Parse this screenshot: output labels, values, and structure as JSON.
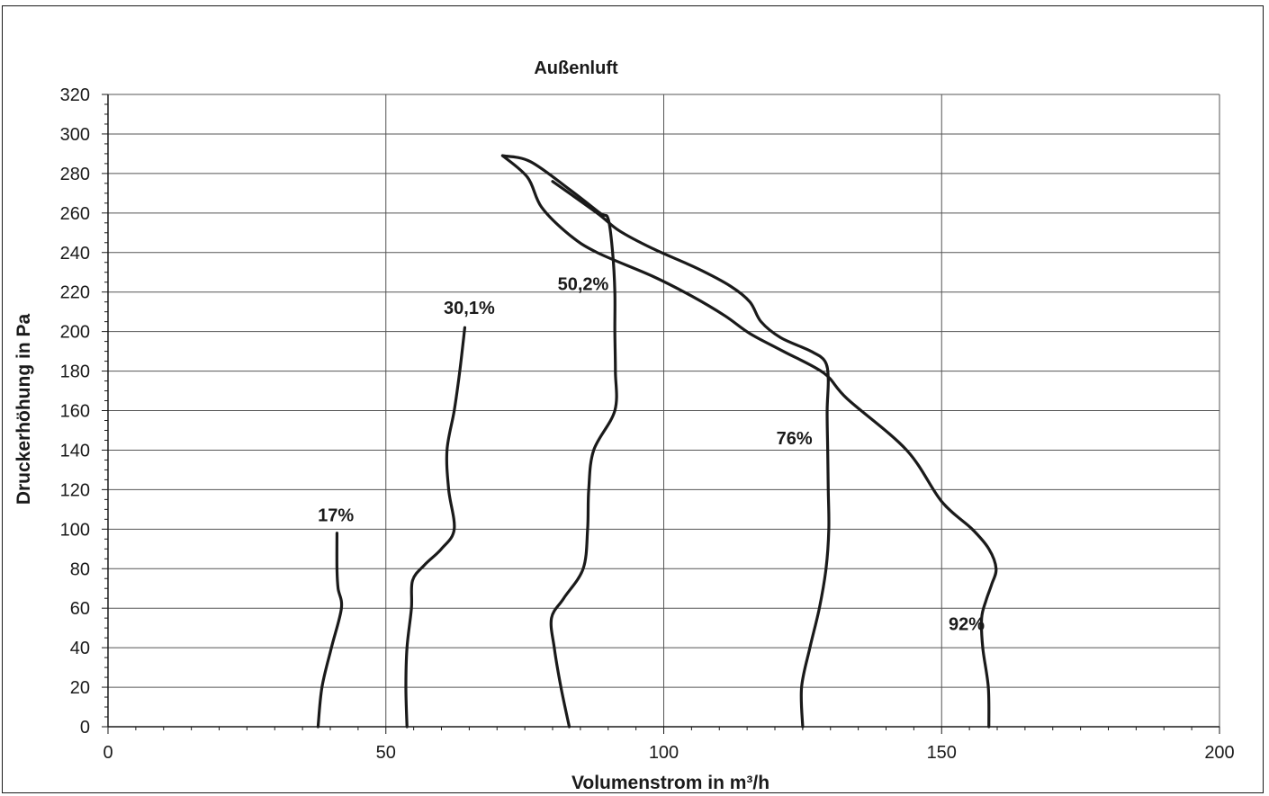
{
  "chart_data": {
    "type": "line",
    "title": "Außenluft",
    "xlabel": "Volumenstrom in m³/h",
    "ylabel": "Druckerhöhung in Pa",
    "xlim": [
      0,
      200
    ],
    "ylim": [
      0,
      320
    ],
    "xticks": [
      0,
      50,
      100,
      150,
      200
    ],
    "yticks": [
      0,
      20,
      40,
      60,
      80,
      100,
      120,
      140,
      160,
      180,
      200,
      220,
      240,
      260,
      280,
      300,
      320
    ],
    "grid": true,
    "line_color": "#1a1a1a",
    "series": [
      {
        "name": "17%",
        "label_at": [
          41,
          104
        ],
        "points": [
          [
            37.8,
            0
          ],
          [
            38.5,
            20
          ],
          [
            40.2,
            40
          ],
          [
            42,
            60
          ],
          [
            41.4,
            70
          ],
          [
            41.2,
            80
          ],
          [
            41.2,
            98
          ]
        ]
      },
      {
        "name": "30,1%",
        "label_at": [
          65,
          209
        ],
        "points": [
          [
            53.8,
            0
          ],
          [
            53.6,
            20
          ],
          [
            53.8,
            40
          ],
          [
            54.6,
            60
          ],
          [
            54.8,
            74
          ],
          [
            57,
            82
          ],
          [
            60,
            90
          ],
          [
            62.3,
            100
          ],
          [
            61.3,
            120
          ],
          [
            61,
            140
          ],
          [
            62.3,
            160
          ],
          [
            63.3,
            180
          ],
          [
            64.2,
            202
          ]
        ]
      },
      {
        "name": "50,2%",
        "label_at": [
          85.5,
          221
        ],
        "points": [
          [
            83,
            0
          ],
          [
            81.5,
            20
          ],
          [
            80.3,
            40
          ],
          [
            79.8,
            55
          ],
          [
            82,
            65
          ],
          [
            85.5,
            80
          ],
          [
            86.3,
            100
          ],
          [
            86.5,
            120
          ],
          [
            87.4,
            140
          ],
          [
            91.2,
            160
          ],
          [
            91.3,
            180
          ],
          [
            91.2,
            200
          ],
          [
            91.2,
            220
          ],
          [
            90.8,
            240
          ],
          [
            90,
            257
          ],
          [
            88.5,
            260
          ],
          [
            83,
            272
          ],
          [
            76,
            286
          ],
          [
            71,
            289
          ]
        ]
      },
      {
        "name": "76%",
        "label_at": [
          123.5,
          143
        ],
        "points": [
          [
            125,
            0
          ],
          [
            124.8,
            20
          ],
          [
            126.3,
            40
          ],
          [
            128,
            60
          ],
          [
            129.2,
            80
          ],
          [
            129.7,
            100
          ],
          [
            129.6,
            120
          ],
          [
            129.5,
            140
          ],
          [
            129.4,
            160
          ],
          [
            129.6,
            176
          ],
          [
            129,
            185
          ],
          [
            126.5,
            190
          ],
          [
            121,
            197
          ],
          [
            117.5,
            205
          ],
          [
            115.5,
            215
          ],
          [
            112,
            223
          ],
          [
            106,
            232
          ],
          [
            98,
            242
          ],
          [
            92,
            251
          ],
          [
            88,
            260
          ],
          [
            80,
            276
          ]
        ]
      },
      {
        "name": "92%",
        "label_at": [
          154.5,
          49
        ],
        "points": [
          [
            158.5,
            0
          ],
          [
            158.4,
            20
          ],
          [
            157.4,
            40
          ],
          [
            157.2,
            55
          ],
          [
            158,
            64
          ],
          [
            159,
            72
          ],
          [
            159.8,
            80
          ],
          [
            158.5,
            90
          ],
          [
            155.5,
            100
          ],
          [
            150,
            114
          ],
          [
            143.7,
            140
          ],
          [
            133,
            166
          ],
          [
            128.8,
            179
          ],
          [
            121.5,
            190
          ],
          [
            115.5,
            199
          ],
          [
            111,
            208
          ],
          [
            105,
            218
          ],
          [
            98,
            228
          ],
          [
            88,
            240
          ],
          [
            83,
            249
          ],
          [
            78,
            263
          ],
          [
            75.5,
            278
          ],
          [
            71,
            289
          ]
        ]
      }
    ]
  }
}
